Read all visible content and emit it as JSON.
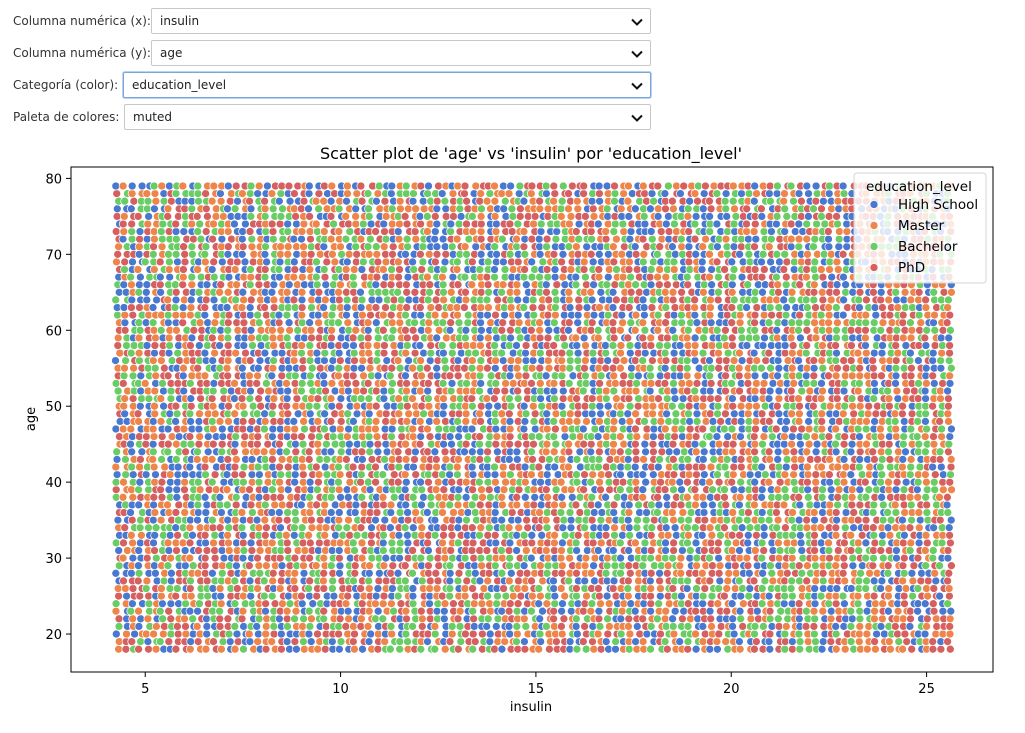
{
  "controls": [
    {
      "label": "Columna numérica (x):",
      "value": "insulin"
    },
    {
      "label": "Columna numérica (y):",
      "value": "age"
    },
    {
      "label": "Categoría (color):",
      "value": "education_level"
    },
    {
      "label": "Paleta de colores:",
      "value": "muted"
    }
  ],
  "icons": {
    "dropdown": "chevron-down-icon"
  },
  "chart_data": {
    "type": "scatter",
    "title": "Scatter plot de 'age' vs 'insulin' por 'education_level'",
    "xlabel": "insulin",
    "ylabel": "age",
    "xlim": [
      3.1,
      26.7
    ],
    "ylim": [
      15,
      81.5
    ],
    "x_ticks": [
      5,
      10,
      15,
      20,
      25
    ],
    "y_ticks": [
      20,
      30,
      40,
      50,
      60,
      70,
      80
    ],
    "x_range_of_points": [
      4.3,
      25.7
    ],
    "y_range_of_points": [
      18,
      79
    ],
    "grid": false,
    "legend": {
      "title": "education_level",
      "placement": "top-right",
      "entries": [
        "High School",
        "Master",
        "Bachelor",
        "PhD"
      ]
    },
    "series": [
      {
        "name": "High School",
        "color": "#4878d0"
      },
      {
        "name": "Master",
        "color": "#ee854a"
      },
      {
        "name": "Bachelor",
        "color": "#6acc64"
      },
      {
        "name": "PhD",
        "color": "#d65f5f"
      }
    ]
  }
}
